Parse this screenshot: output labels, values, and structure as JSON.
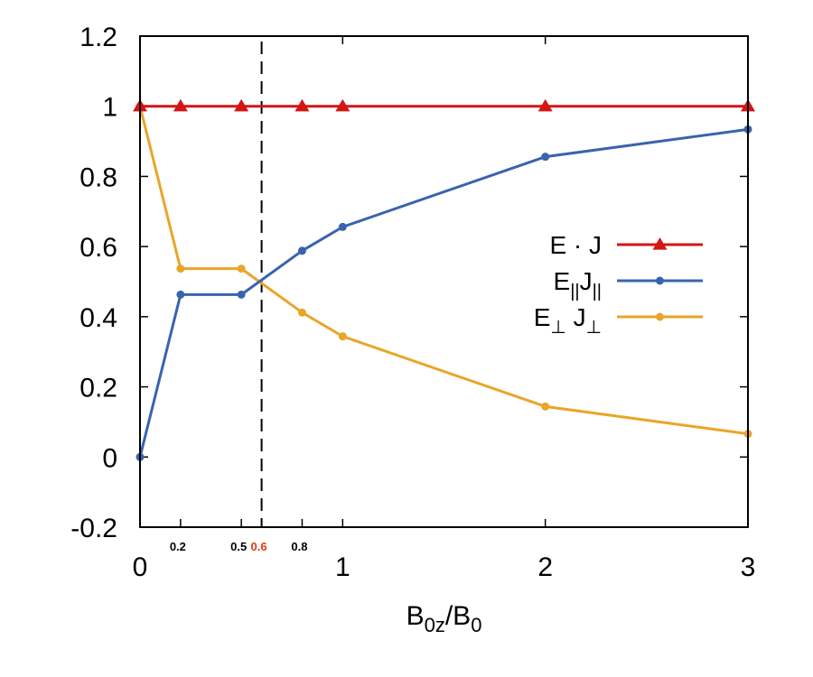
{
  "chart_data": {
    "type": "line",
    "xlabel": {
      "main": "B",
      "sub1": "0z",
      "sep": "/B",
      "sub2": "0"
    },
    "ylabel": "",
    "title": "",
    "xlim": [
      0,
      3
    ],
    "ylim": [
      -0.2,
      1.2
    ],
    "grid": false,
    "legend_placement": "right",
    "y_ticks": [
      "-0.2",
      "0",
      "0.2",
      "0.4",
      "0.6",
      "0.8",
      "1",
      "1.2"
    ],
    "x_ticks_major": [
      "0",
      "1",
      "2",
      "3"
    ],
    "x_ticks_minor": [
      {
        "value": 0.2,
        "label": "0.2",
        "color": "#000000"
      },
      {
        "value": 0.5,
        "label": "0.5",
        "color": "#000000"
      },
      {
        "value": 0.6,
        "label": "0.6",
        "color": "#e03c10"
      },
      {
        "value": 0.8,
        "label": "0.8",
        "color": "#000000"
      }
    ],
    "vline": {
      "x": 0.6,
      "style": "dashed",
      "color": "#000000"
    },
    "x": [
      0,
      0.2,
      0.5,
      0.8,
      1,
      2,
      3
    ],
    "series": [
      {
        "key": "total",
        "legend": {
          "main": "E · J"
        },
        "color": "#d41515",
        "marker": "triangle",
        "values": [
          1,
          1,
          1,
          1,
          1,
          1,
          1
        ]
      },
      {
        "key": "parallel",
        "legend": {
          "e": "E",
          "esub": "||",
          "j": "J",
          "jsub": "||"
        },
        "color": "#3a63ad",
        "marker": "circle",
        "values": [
          0,
          0.463,
          0.463,
          0.588,
          0.656,
          0.856,
          0.934
        ]
      },
      {
        "key": "perpendicular",
        "legend": {
          "e": "E",
          "esub": "⊥",
          "j": " J",
          "jsub": "⊥"
        },
        "color": "#e8a629",
        "marker": "circle",
        "values": [
          1,
          0.537,
          0.537,
          0.412,
          0.344,
          0.144,
          0.066
        ]
      }
    ]
  }
}
